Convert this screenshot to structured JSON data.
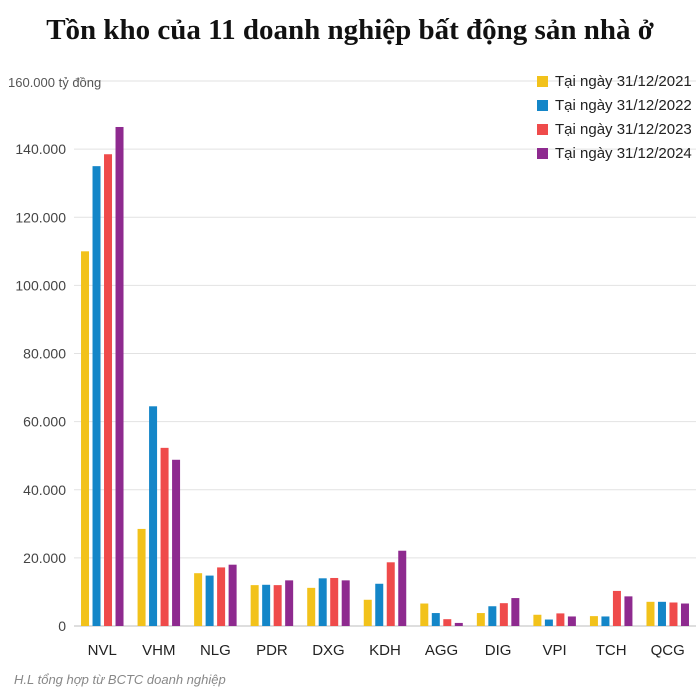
{
  "chart_data": {
    "type": "bar",
    "title": "Tồn kho của 11 doanh nghiệp bất động sản nhà ở",
    "unit_label": "160.000 tỷ đồng",
    "y_ticks": [
      "0",
      "20.000",
      "40.000",
      "60.000",
      "80.000",
      "100.000",
      "120.000",
      "140.000"
    ],
    "ylim": [
      0,
      160000
    ],
    "grid": true,
    "legend_position": "top-right",
    "categories": [
      "NVL",
      "VHM",
      "NLG",
      "PDR",
      "DXG",
      "KDH",
      "AGG",
      "DIG",
      "VPI",
      "TCH",
      "QCG"
    ],
    "series": [
      {
        "name": "Tại ngày 31/12/2021",
        "color": "#F2C21B",
        "values": [
          110000,
          28500,
          15500,
          12000,
          11200,
          7700,
          6600,
          3800,
          3300,
          2900,
          7100
        ]
      },
      {
        "name": "Tại ngày 31/12/2022",
        "color": "#1486C8",
        "values": [
          135000,
          64500,
          14800,
          12100,
          14000,
          12400,
          3800,
          5800,
          1900,
          2800,
          7100
        ]
      },
      {
        "name": "Tại ngày 31/12/2023",
        "color": "#EF4B4B",
        "values": [
          138500,
          52300,
          17200,
          12000,
          14100,
          18700,
          2000,
          6700,
          3700,
          10300,
          6900
        ]
      },
      {
        "name": "Tại ngày 31/12/2024",
        "color": "#8E2A8F",
        "values": [
          146500,
          48800,
          18000,
          13400,
          13400,
          22100,
          900,
          8200,
          2800,
          8700,
          6600
        ]
      }
    ],
    "source_note": "H.L tổng hợp từ BCTC doanh nghiệp"
  }
}
